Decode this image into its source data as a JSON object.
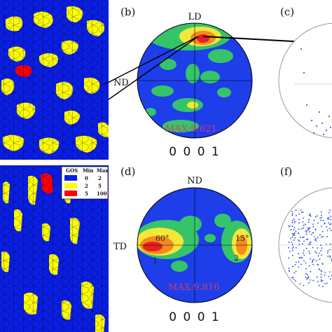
{
  "colors": {
    "gos_low": "#0a1ee6",
    "gos_mid": "#ffff00",
    "gos_high": "#ff0000",
    "pf_bg": "#1d3ee8",
    "pf_green": "#36c46a",
    "pf_yellow": "#f5e63a",
    "pf_orange": "#f58a1e",
    "pf_red": "#e8201e",
    "max_text": "#d63a6b"
  },
  "legend": {
    "header_gos": "GOS",
    "header_min": "Min",
    "header_max": "Max",
    "rows": [
      {
        "color": "#0a1ee6",
        "min": "0",
        "max": "2"
      },
      {
        "color": "#ffff00",
        "min": "2",
        "max": "5"
      },
      {
        "color": "#ff0000",
        "min": "5",
        "max": "100"
      }
    ]
  },
  "panels": {
    "b": {
      "label": "(b)",
      "top_axis": "LD",
      "left_axis": "ND",
      "max_text": "MAX:9.621",
      "index": "0 0 0 1"
    },
    "c": {
      "label": "(c)"
    },
    "d": {
      "label": "(d)",
      "top_axis": "ND",
      "left_axis": "TD",
      "max_text": "MAX:9.816",
      "index": "0 0 0 1",
      "contour_labels": [
        "60°",
        "1",
        "15°",
        "2"
      ]
    },
    "f": {
      "label": "(f)"
    }
  }
}
